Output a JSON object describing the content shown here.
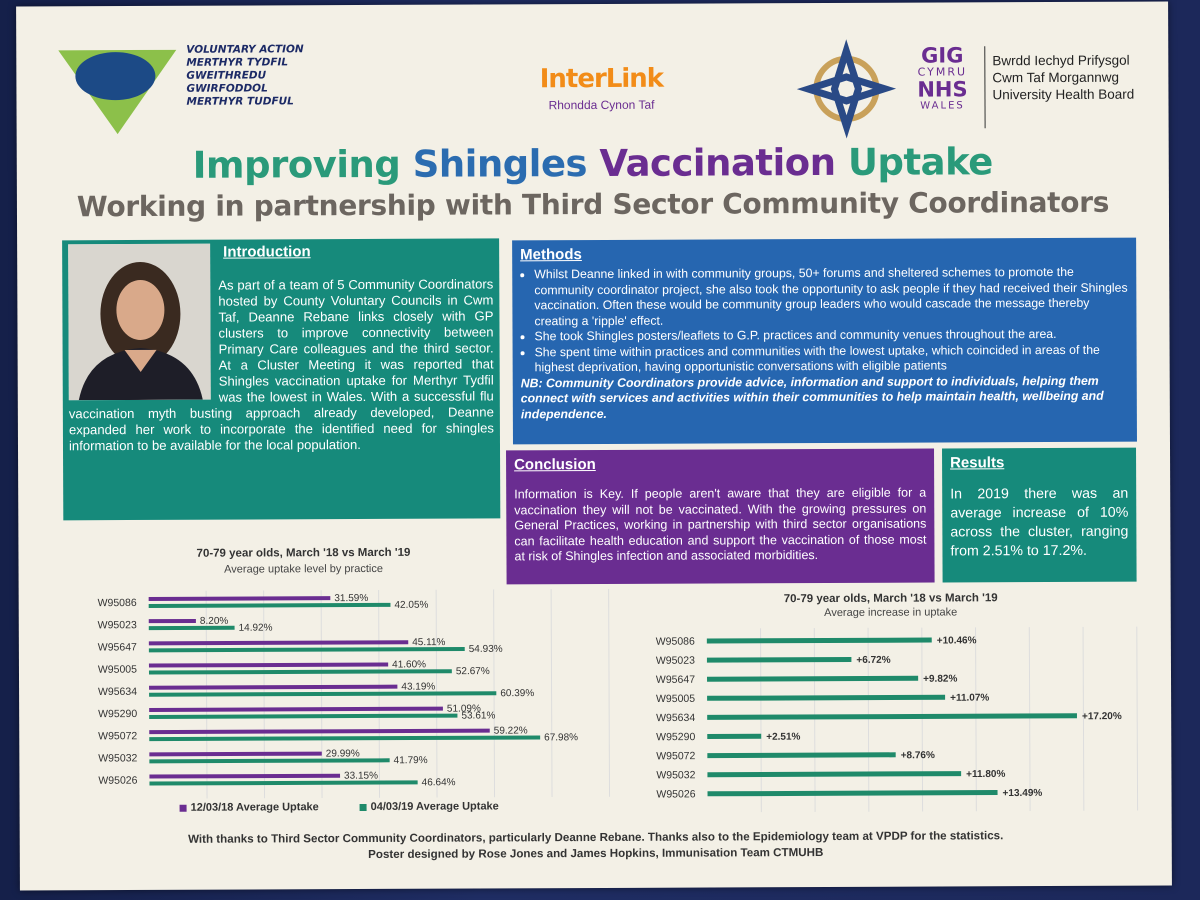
{
  "logos": {
    "voluntary_action": {
      "emblem_text": "VOLUNTARY\nACTION\nGWEITHREDU\nGWIRFODDOL",
      "name": "VOLUNTARY ACTION\nMERTHYR TYDFIL\nGWEITHREDU GWIRFODDOL\nMERTHYR TUDFUL"
    },
    "interlink": {
      "word": "InterLink",
      "sub": "Rhondda Cynon Taf"
    },
    "nhs": {
      "gig": "GIG",
      "cymru": "CYMRU",
      "nhs": "NHS",
      "wales": "WALES",
      "board": "Bwrdd Iechyd Prifysgol\nCwm Taf Morgannwg\nUniversity Health Board"
    }
  },
  "title": {
    "w1": "Improving",
    "w2": "Shingles",
    "w3": "Vaccination",
    "w4": "Uptake"
  },
  "subtitle": "Working in partnership with Third Sector Community Coordinators",
  "introduction": {
    "heading": "Introduction",
    "text": "As part of a team of 5 Community Coordinators hosted by County Voluntary Councils in Cwm Taf, Deanne Rebane links closely with GP clusters to improve connectivity between Primary Care colleagues and the third sector. At a Cluster Meeting it was reported that Shingles vaccination uptake for Merthyr Tydfil was the lowest in Wales. With a successful flu vaccination myth busting approach already developed, Deanne expanded her work to incorporate the identified need for shingles information to be available for the local population."
  },
  "methods": {
    "heading": "Methods",
    "bullets": [
      "Whilst Deanne linked in with community groups, 50+ forums and sheltered schemes to promote the community coordinator project, she also took the opportunity to ask people if they had received their Shingles vaccination. Often these would be community group leaders who would cascade the message thereby creating a 'ripple' effect.",
      "She took Shingles posters/leaflets to G.P. practices and community venues throughout the area.",
      "She spent time within practices and communities with the lowest uptake, which coincided in areas of the highest deprivation, having opportunistic conversations with eligible patients"
    ],
    "nb": "NB: Community Coordinators provide advice, information and support to individuals, helping them connect with services and activities within their communities to help maintain health, wellbeing and independence."
  },
  "conclusion": {
    "heading": "Conclusion",
    "text": "Information is Key. If people aren't aware that they are eligible for a vaccination they will not be vaccinated. With the growing pressures on General Practices, working in partnership with third sector organisations can facilitate health education and support the vaccination of those most at risk of Shingles infection and associated morbidities."
  },
  "results": {
    "heading": "Results",
    "text": "In 2019 there was an average increase of 10% across the cluster, ranging from 2.51% to 17.2%."
  },
  "colors": {
    "purple": "#6a2d91",
    "teal": "#168a7b",
    "blue": "#2666b0",
    "green_bar": "#1f8a6a",
    "purple_bar": "#6a2d91"
  },
  "chart_data": [
    {
      "type": "bar",
      "title": "70-79 year olds, March '18 vs March '19",
      "subtitle": "Average uptake level by practice",
      "categories": [
        "W95086",
        "W95023",
        "W95647",
        "W95005",
        "W95634",
        "W95290",
        "W95072",
        "W95032",
        "W95026"
      ],
      "series": [
        {
          "name": "12/03/18 Average Uptake",
          "values": [
            31.59,
            8.2,
            45.11,
            41.6,
            43.19,
            51.09,
            59.22,
            29.99,
            33.15
          ],
          "labels": [
            "31.59%",
            "8.20%",
            "45.11%",
            "41.60%",
            "43.19%",
            "51.09%",
            "59.22%",
            "29.99%",
            "33.15%"
          ]
        },
        {
          "name": "04/03/19 Average Uptake",
          "values": [
            42.05,
            14.92,
            54.93,
            52.67,
            60.39,
            53.61,
            67.98,
            41.79,
            46.64
          ],
          "labels": [
            "42.05%",
            "14.92%",
            "54.93%",
            "52.67%",
            "60.39%",
            "53.61%",
            "67.98%",
            "41.79%",
            "46.64%"
          ]
        }
      ],
      "xlim": [
        0,
        80
      ],
      "grid": true,
      "legend": "bottom"
    },
    {
      "type": "bar",
      "title": "70-79 year olds, March '18 vs March '19",
      "subtitle": "Average increase in uptake",
      "categories": [
        "W95086",
        "W95023",
        "W95647",
        "W95005",
        "W95634",
        "W95290",
        "W95072",
        "W95032",
        "W95026"
      ],
      "series": [
        {
          "values": [
            10.46,
            6.72,
            9.82,
            11.07,
            17.2,
            2.51,
            8.76,
            11.8,
            13.49
          ],
          "labels": [
            "+10.46%",
            "+6.72%",
            "+9.82%",
            "+11.07%",
            "+17.20%",
            "+2.51%",
            "+8.76%",
            "+11.80%",
            "+13.49%"
          ]
        }
      ],
      "xlim": [
        0,
        20
      ],
      "grid": true
    }
  ],
  "footer": {
    "line1": "With thanks to Third Sector Community Coordinators, particularly Deanne Rebane. Thanks also to the Epidemiology team at VPDP for the statistics.",
    "line2": "Poster designed by Rose Jones and James Hopkins, Immunisation Team CTMUHB"
  }
}
